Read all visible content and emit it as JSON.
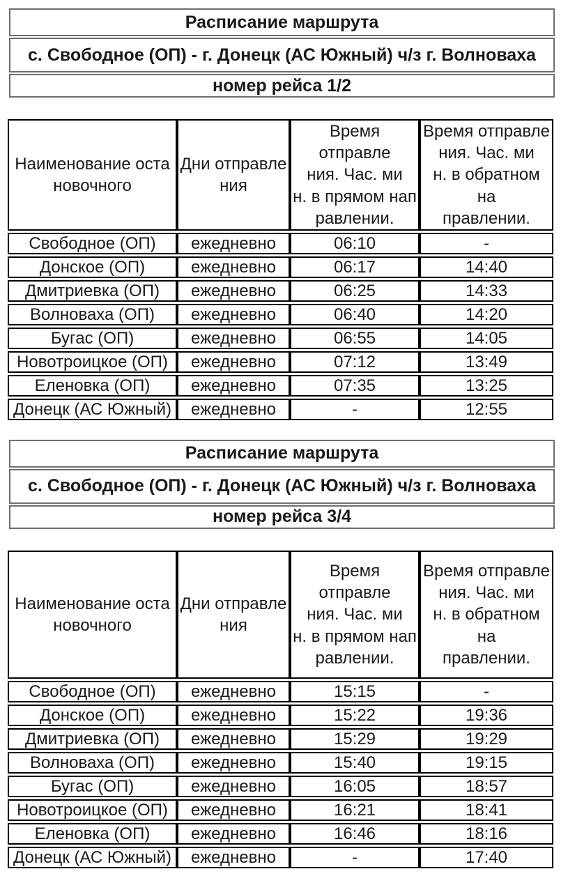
{
  "sections": [
    {
      "header": {
        "title": "Расписание маршрута",
        "route": "с. Свободное (ОП) - г. Донецк (АС Южный) ч/з г. Волноваха",
        "trip_number": "номер рейса 1/2"
      },
      "table": {
        "columns": [
          "Наименование оста\nновочного",
          "Дни отправле\nния",
          "Время отправле\nния. Час. ми\nн. в прямом нап\nравлении.",
          "Время отправле\nния. Час. ми\nн. в обратном на\nправлении."
        ],
        "rows": [
          {
            "stop": "Свободное (ОП)",
            "days": "ежедневно",
            "forward": "06:10",
            "backward": "-"
          },
          {
            "stop": "Донское (ОП)",
            "days": "ежедневно",
            "forward": "06:17",
            "backward": "14:40"
          },
          {
            "stop": "Дмитриевка (ОП)",
            "days": "ежедневно",
            "forward": "06:25",
            "backward": "14:33"
          },
          {
            "stop": "Волноваха (ОП)",
            "days": "ежедневно",
            "forward": "06:40",
            "backward": "14:20"
          },
          {
            "stop": "Бугас (ОП)",
            "days": "ежедневно",
            "forward": "06:55",
            "backward": "14:05"
          },
          {
            "stop": "Новотроицкое (ОП)",
            "days": "ежедневно",
            "forward": "07:12",
            "backward": "13:49"
          },
          {
            "stop": "Еленовка (ОП)",
            "days": "ежедневно",
            "forward": "07:35",
            "backward": "13:25"
          },
          {
            "stop": "Донецк (АС Южный)",
            "days": "ежедневно",
            "forward": "-",
            "backward": "12:55"
          }
        ]
      }
    },
    {
      "header": {
        "title": "Расписание маршрута",
        "route": "с. Свободное (ОП) - г. Донецк (АС Южный) ч/з г. Волноваха",
        "trip_number": "номер рейса 3/4"
      },
      "table": {
        "columns": [
          "Наименование оста\nновочного",
          "Дни отправле\nния",
          "Время отправле\nния. Час. ми\nн. в прямом нап\nравлении.",
          "Время отправле\nния. Час. ми\nн. в обратном на\nправлении."
        ],
        "rows": [
          {
            "stop": "Свободное (ОП)",
            "days": "ежедневно",
            "forward": "15:15",
            "backward": "-"
          },
          {
            "stop": "Донское (ОП)",
            "days": "ежедневно",
            "forward": "15:22",
            "backward": "19:36"
          },
          {
            "stop": "Дмитриевка (ОП)",
            "days": "ежедневно",
            "forward": "15:29",
            "backward": "19:29"
          },
          {
            "stop": "Волноваха (ОП)",
            "days": "ежедневно",
            "forward": "15:40",
            "backward": "19:15"
          },
          {
            "stop": "Бугас (ОП)",
            "days": "ежедневно",
            "forward": "16:05",
            "backward": "18:57"
          },
          {
            "stop": "Новотроицкое (ОП)",
            "days": "ежедневно",
            "forward": "16:21",
            "backward": "18:41"
          },
          {
            "stop": "Еленовка (ОП)",
            "days": "ежедневно",
            "forward": "16:46",
            "backward": "18:16"
          },
          {
            "stop": "Донецк (АС Южный)",
            "days": "ежедневно",
            "forward": "-",
            "backward": "17:40"
          }
        ]
      }
    }
  ]
}
